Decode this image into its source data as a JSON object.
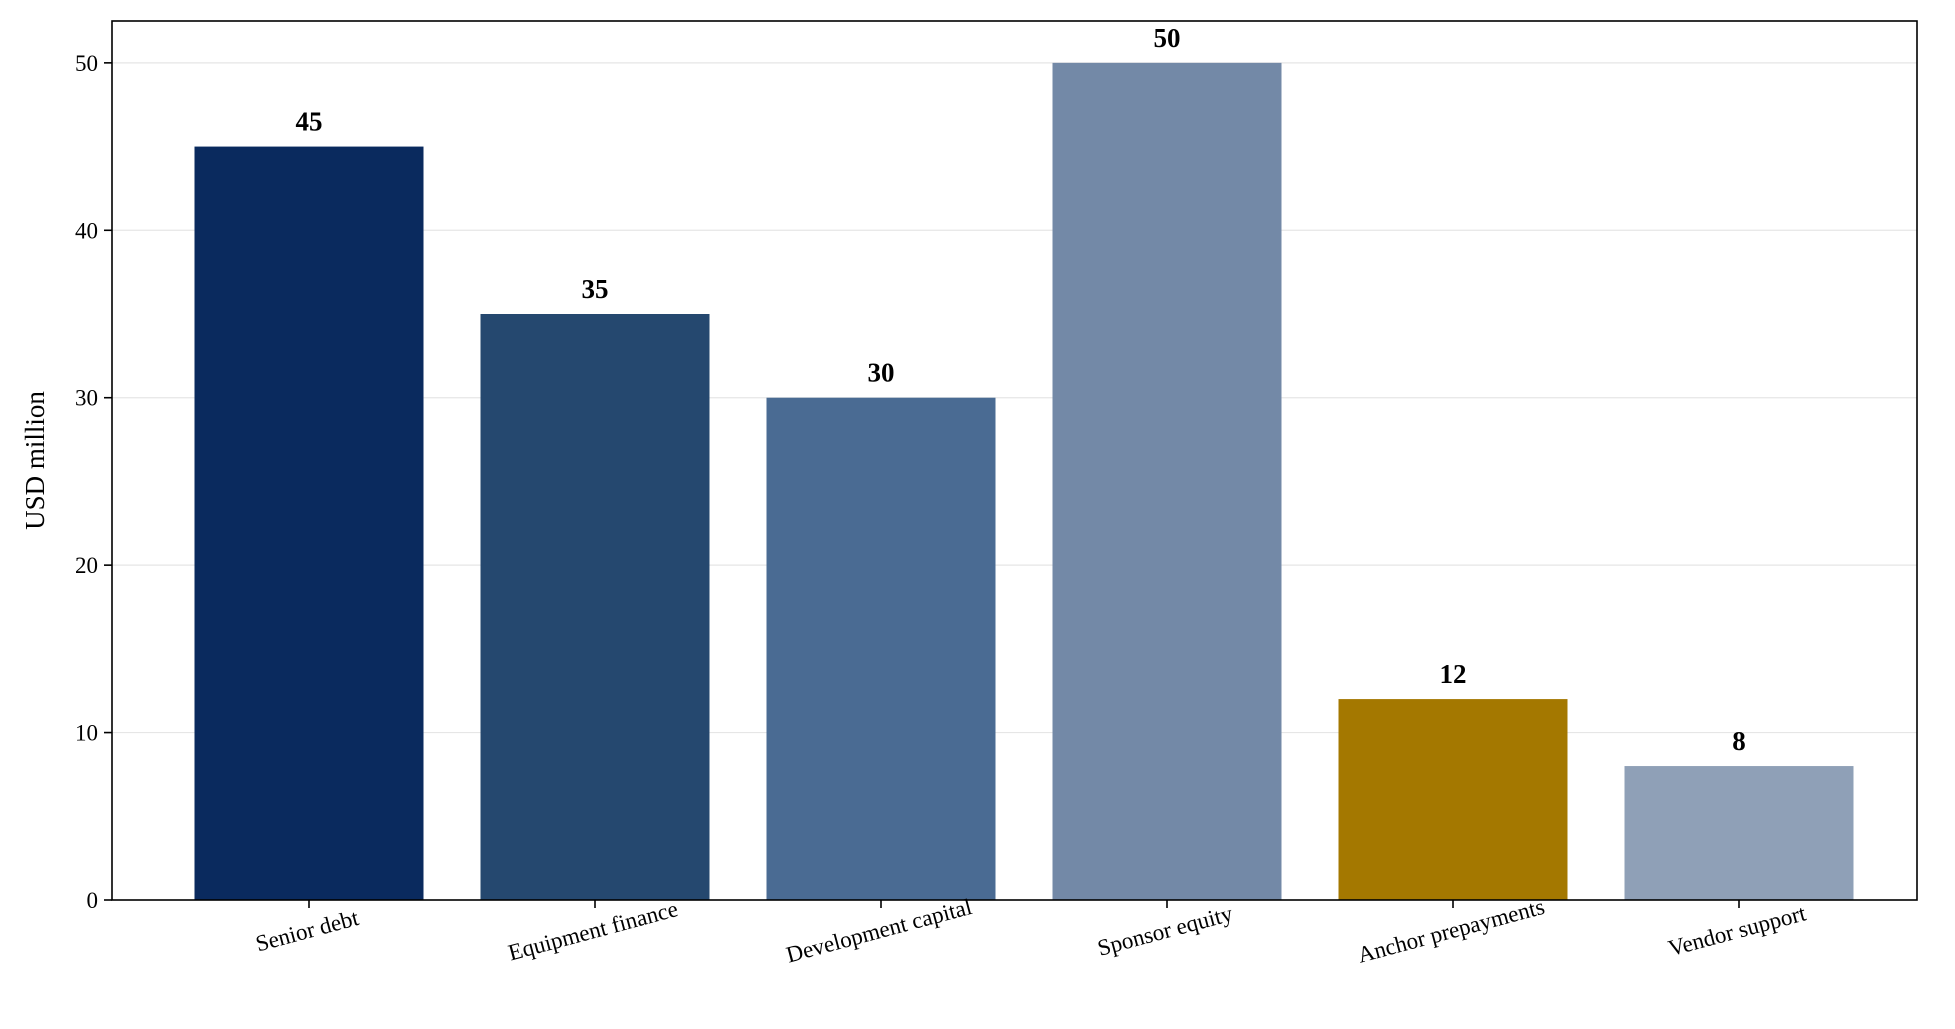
{
  "chart_data": {
    "type": "bar",
    "title": "",
    "xlabel": "",
    "ylabel": "USD million",
    "ylim": [
      0,
      52.5
    ],
    "yticks": [
      0,
      10,
      20,
      30,
      40,
      50
    ],
    "grid": "y-only",
    "categories": [
      "Senior debt",
      "Equipment finance",
      "Development capital",
      "Sponsor equity",
      "Anchor prepayments",
      "Vendor support"
    ],
    "values": [
      45,
      35,
      30,
      50,
      12,
      8
    ],
    "value_labels": [
      "45",
      "35",
      "30",
      "50",
      "12",
      "8"
    ],
    "colors": [
      "#0a2a5e",
      "#25486f",
      "#4a6b93",
      "#7389a7",
      "#a47800",
      "#8fa0b7"
    ],
    "x_tick_rotation_deg": 15
  }
}
